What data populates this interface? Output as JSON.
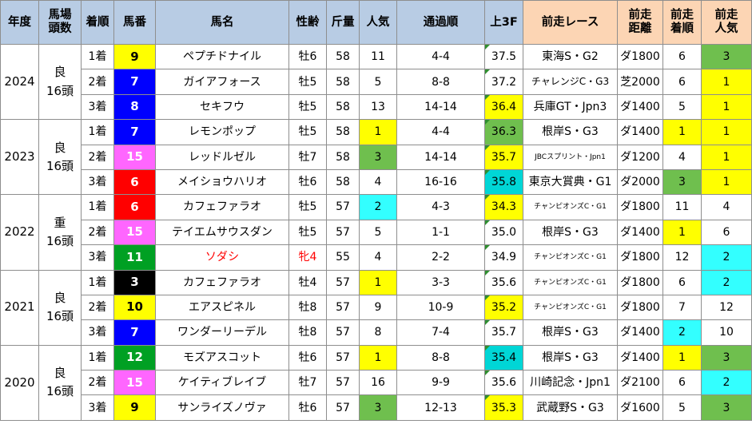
{
  "headers": [
    "年度",
    "馬場\n頭数",
    "着順",
    "馬番",
    "馬名",
    "性齢",
    "斤量",
    "人気",
    "通過順",
    "上3F",
    "前走レース",
    "前走\n距離",
    "前走\n着順",
    "前走\n人気"
  ],
  "groups": [
    {
      "year": "2024",
      "cond": "良\n16頭",
      "rows": [
        {
          "place": "1着",
          "num": "9",
          "numColor": "yellow",
          "name": "ペプチドナイル",
          "sa": "牡6",
          "kin": "58",
          "pop": "11",
          "popColor": "",
          "pass": "4-4",
          "f3": "37.5",
          "f3Color": "",
          "prev": "東海S・G2",
          "prevSize": "",
          "dist": "ダ1800",
          "pplace": "6",
          "pplaceColor": "",
          "ppop": "3",
          "ppopColor": "green"
        },
        {
          "place": "2着",
          "num": "7",
          "numColor": "blue",
          "name": "ガイアフォース",
          "sa": "牡5",
          "kin": "58",
          "pop": "5",
          "popColor": "",
          "pass": "8-8",
          "f3": "37.2",
          "f3Color": "",
          "prev": "チャレンジC・G3",
          "prevSize": "mid",
          "dist": "芝2000",
          "pplace": "6",
          "pplaceColor": "",
          "ppop": "1",
          "ppopColor": "yellow"
        },
        {
          "place": "3着",
          "num": "8",
          "numColor": "blue",
          "name": "セキフウ",
          "sa": "牡5",
          "kin": "58",
          "pop": "13",
          "popColor": "",
          "pass": "14-14",
          "f3": "36.4",
          "f3Color": "yellow",
          "prev": "兵庫GT・Jpn3",
          "prevSize": "",
          "dist": "ダ1400",
          "pplace": "5",
          "pplaceColor": "",
          "ppop": "1",
          "ppopColor": "yellow"
        }
      ]
    },
    {
      "year": "2023",
      "cond": "良\n16頭",
      "rows": [
        {
          "place": "1着",
          "num": "7",
          "numColor": "blue",
          "name": "レモンポップ",
          "sa": "牡5",
          "kin": "58",
          "pop": "1",
          "popColor": "yellow",
          "pass": "4-4",
          "f3": "36.3",
          "f3Color": "green",
          "prev": "根岸S・G3",
          "prevSize": "",
          "dist": "ダ1400",
          "pplace": "1",
          "pplaceColor": "yellow",
          "ppop": "1",
          "ppopColor": "yellow"
        },
        {
          "place": "2着",
          "num": "15",
          "numColor": "pink",
          "name": "レッドルゼル",
          "sa": "牡7",
          "kin": "58",
          "pop": "3",
          "popColor": "green",
          "pass": "14-14",
          "f3": "35.7",
          "f3Color": "yellow",
          "prev": "JBCスプリント・Jpn1",
          "prevSize": "small",
          "dist": "ダ1200",
          "pplace": "4",
          "pplaceColor": "",
          "ppop": "1",
          "ppopColor": "yellow"
        },
        {
          "place": "3着",
          "num": "6",
          "numColor": "red",
          "name": "メイショウハリオ",
          "sa": "牡6",
          "kin": "58",
          "pop": "4",
          "popColor": "",
          "pass": "16-16",
          "f3": "35.8",
          "f3Color": "cyan",
          "prev": "東京大賞典・G1",
          "prevSize": "",
          "dist": "ダ2000",
          "pplace": "3",
          "pplaceColor": "green",
          "ppop": "1",
          "ppopColor": "yellow"
        }
      ]
    },
    {
      "year": "2022",
      "cond": "重\n16頭",
      "rows": [
        {
          "place": "1着",
          "num": "6",
          "numColor": "red",
          "name": "カフェファラオ",
          "sa": "牡5",
          "kin": "57",
          "pop": "2",
          "popColor": "cyan",
          "pass": "4-3",
          "f3": "34.3",
          "f3Color": "yellow",
          "prev": "チャンピオンズC・G1",
          "prevSize": "small",
          "dist": "ダ1800",
          "pplace": "11",
          "pplaceColor": "",
          "ppop": "4",
          "ppopColor": ""
        },
        {
          "place": "2着",
          "num": "15",
          "numColor": "pink",
          "name": "テイエムサウスダン",
          "sa": "牡5",
          "kin": "57",
          "pop": "5",
          "popColor": "",
          "pass": "1-1",
          "f3": "35.0",
          "f3Color": "",
          "prev": "根岸S・G3",
          "prevSize": "",
          "dist": "ダ1400",
          "pplace": "1",
          "pplaceColor": "yellow",
          "ppop": "6",
          "ppopColor": ""
        },
        {
          "place": "3着",
          "num": "11",
          "numColor": "green",
          "name": "ソダシ",
          "nameRed": true,
          "sa": "牝4",
          "saRed": true,
          "kin": "55",
          "pop": "4",
          "popColor": "",
          "pass": "2-2",
          "f3": "34.9",
          "f3Color": "",
          "prev": "チャンピオンズC・G1",
          "prevSize": "small",
          "dist": "ダ1800",
          "pplace": "12",
          "pplaceColor": "",
          "ppop": "2",
          "ppopColor": "cyan"
        }
      ]
    },
    {
      "year": "2021",
      "cond": "良\n16頭",
      "rows": [
        {
          "place": "1着",
          "num": "3",
          "numColor": "black",
          "name": "カフェファラオ",
          "sa": "牡4",
          "kin": "57",
          "pop": "1",
          "popColor": "yellow",
          "pass": "3-3",
          "f3": "35.6",
          "f3Color": "",
          "prev": "チャンピオンズC・G1",
          "prevSize": "small",
          "dist": "ダ1800",
          "pplace": "6",
          "pplaceColor": "",
          "ppop": "2",
          "ppopColor": "cyan"
        },
        {
          "place": "2着",
          "num": "10",
          "numColor": "yellow",
          "name": "エアスピネル",
          "sa": "牡8",
          "kin": "57",
          "pop": "9",
          "popColor": "",
          "pass": "10-9",
          "f3": "35.2",
          "f3Color": "yellow",
          "prev": "チャンピオンズC・G1",
          "prevSize": "small",
          "dist": "ダ1800",
          "pplace": "7",
          "pplaceColor": "",
          "ppop": "12",
          "ppopColor": ""
        },
        {
          "place": "3着",
          "num": "7",
          "numColor": "blue",
          "name": "ワンダーリーデル",
          "sa": "牡8",
          "kin": "57",
          "pop": "8",
          "popColor": "",
          "pass": "7-4",
          "f3": "35.7",
          "f3Color": "",
          "prev": "根岸S・G3",
          "prevSize": "",
          "dist": "ダ1400",
          "pplace": "2",
          "pplaceColor": "cyan",
          "ppop": "10",
          "ppopColor": ""
        }
      ]
    },
    {
      "year": "2020",
      "cond": "良\n16頭",
      "rows": [
        {
          "place": "1着",
          "num": "12",
          "numColor": "green",
          "name": "モズアスコット",
          "sa": "牡6",
          "kin": "57",
          "pop": "1",
          "popColor": "yellow",
          "pass": "8-8",
          "f3": "35.4",
          "f3Color": "cyan",
          "prev": "根岸S・G3",
          "prevSize": "",
          "dist": "ダ1400",
          "pplace": "1",
          "pplaceColor": "yellow",
          "ppop": "3",
          "ppopColor": "green"
        },
        {
          "place": "2着",
          "num": "15",
          "numColor": "pink",
          "name": "ケイティブレイブ",
          "sa": "牡7",
          "kin": "57",
          "pop": "16",
          "popColor": "",
          "pass": "9-9",
          "f3": "35.6",
          "f3Color": "",
          "prev": "川崎記念・Jpn1",
          "prevSize": "",
          "dist": "ダ2100",
          "pplace": "6",
          "pplaceColor": "",
          "ppop": "2",
          "ppopColor": "cyan"
        },
        {
          "place": "3着",
          "num": "9",
          "numColor": "yellow",
          "name": "サンライズノヴァ",
          "sa": "牡6",
          "kin": "57",
          "pop": "3",
          "popColor": "green",
          "pass": "12-13",
          "f3": "35.3",
          "f3Color": "yellow",
          "prev": "武蔵野S・G3",
          "prevSize": "",
          "dist": "ダ1600",
          "pplace": "5",
          "pplaceColor": "",
          "ppop": "3",
          "ppopColor": "green"
        }
      ]
    }
  ]
}
